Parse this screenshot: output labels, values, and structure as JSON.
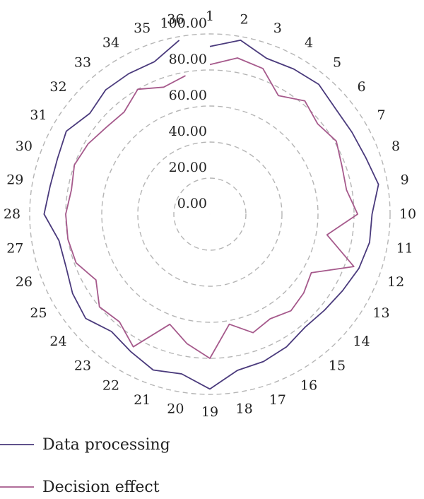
{
  "chart_data": {
    "type": "radar",
    "categories": [
      "1",
      "2",
      "3",
      "4",
      "5",
      "6",
      "7",
      "8",
      "9",
      "10",
      "11",
      "12",
      "13",
      "14",
      "15",
      "16",
      "17",
      "18",
      "19",
      "20",
      "21",
      "22",
      "23",
      "24",
      "25",
      "26",
      "27",
      "28",
      "29",
      "30",
      "31",
      "32",
      "33",
      "34",
      "35",
      "36"
    ],
    "radial_ticks": [
      "0.00",
      "20.00",
      "40.00",
      "60.00",
      "80.00",
      "100.00"
    ],
    "rlim": [
      0,
      100
    ],
    "grid": true,
    "legend_position": "bottom-left",
    "series": [
      {
        "name": "Data processing",
        "color": "#4a3a7c",
        "values": [
          93,
          98,
          92,
          93,
          94,
          91,
          91,
          92,
          95,
          90,
          90,
          88,
          85,
          83,
          82,
          85,
          87,
          88,
          97,
          90,
          92,
          88,
          85,
          90,
          88,
          85,
          85,
          92,
          90,
          90,
          92,
          87,
          90,
          90,
          90,
          98
        ]
      },
      {
        "name": "Decision effect",
        "color": "#a65a8c",
        "values": [
          83,
          88,
          86,
          76,
          82,
          78,
          81,
          78,
          77,
          82,
          66,
          85,
          65,
          68,
          70,
          67,
          70,
          62,
          80,
          73,
          65,
          85,
          78,
          80,
          73,
          79,
          80,
          80,
          78,
          80,
          78,
          75,
          74,
          80,
          75,
          78
        ]
      }
    ]
  }
}
